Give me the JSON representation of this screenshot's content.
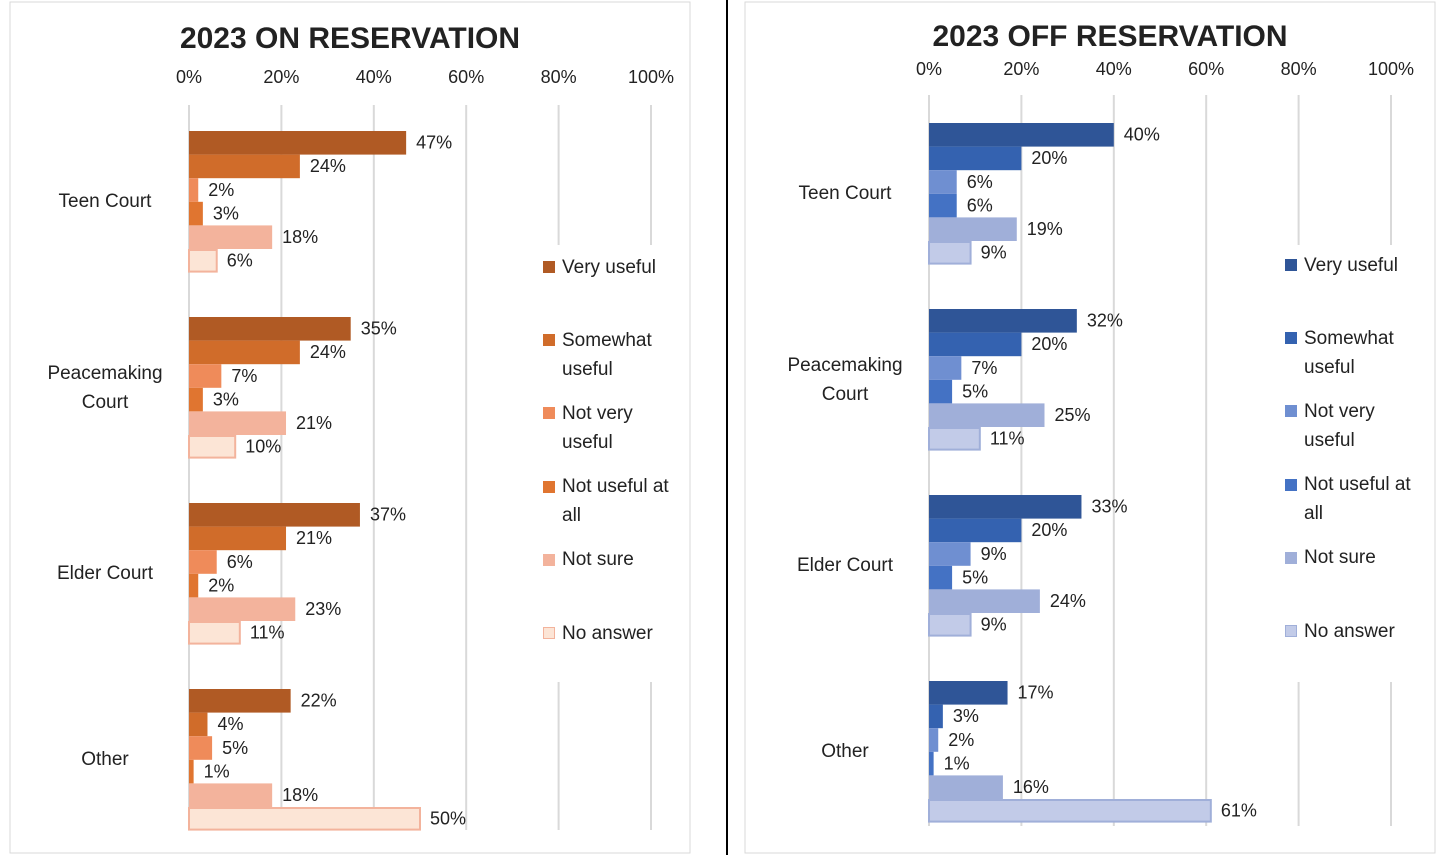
{
  "chart_data": [
    {
      "type": "bar",
      "orientation": "horizontal",
      "title": "2023 ON RESERVATION",
      "title_color": "#8b4513",
      "categories": [
        "Teen Court",
        "Peacemaking Court",
        "Elder Court",
        "Other"
      ],
      "xlim": [
        0,
        100
      ],
      "xticks": [
        {
          "value": 0,
          "label": "0%"
        },
        {
          "value": 20,
          "label": "20%"
        },
        {
          "value": 40,
          "label": "40%"
        },
        {
          "value": 60,
          "label": "60%"
        },
        {
          "value": 80,
          "label": "80%"
        },
        {
          "value": 100,
          "label": "100%"
        }
      ],
      "grid": true,
      "legend": "right",
      "series": [
        {
          "name": "Very useful",
          "color": "#b05a24",
          "values": [
            47,
            35,
            37,
            22
          ],
          "value_labels": [
            "47%",
            "35%",
            "37%",
            "22%"
          ]
        },
        {
          "name": "Somewhat useful",
          "color": "#d06c2a",
          "values": [
            24,
            24,
            21,
            4
          ],
          "value_labels": [
            "24%",
            "24%",
            "21%",
            "4%"
          ]
        },
        {
          "name": "Not very useful",
          "color": "#ef8b5a",
          "values": [
            2,
            7,
            6,
            5
          ],
          "value_labels": [
            "2%",
            "7%",
            "6%",
            "5%"
          ]
        },
        {
          "name": "Not useful at all",
          "color": "#e07530",
          "values": [
            3,
            3,
            2,
            1
          ],
          "value_labels": [
            "3%",
            "3%",
            "2%",
            "1%"
          ]
        },
        {
          "name": "Not sure",
          "color": "#f3b39c",
          "values": [
            18,
            21,
            23,
            18
          ],
          "value_labels": [
            "18%",
            "21%",
            "23%",
            "18%"
          ]
        },
        {
          "name": "No answer",
          "color": "#fce5d6",
          "values": [
            6,
            10,
            11,
            50
          ],
          "value_labels": [
            "6%",
            "10%",
            "11%",
            "50%"
          ]
        }
      ]
    },
    {
      "type": "bar",
      "orientation": "horizontal",
      "title": "2023 OFF RESERVATION",
      "title_color": "#2e4e7a",
      "categories": [
        "Teen Court",
        "Peacemaking Court",
        "Elder Court",
        "Other"
      ],
      "xlim": [
        0,
        100
      ],
      "xticks": [
        {
          "value": 0,
          "label": "0%"
        },
        {
          "value": 20,
          "label": "20%"
        },
        {
          "value": 40,
          "label": "40%"
        },
        {
          "value": 60,
          "label": "60%"
        },
        {
          "value": 80,
          "label": "80%"
        },
        {
          "value": 100,
          "label": "100%"
        }
      ],
      "grid": true,
      "legend": "right",
      "series": [
        {
          "name": "Very useful",
          "color": "#2f5597",
          "values": [
            40,
            32,
            33,
            17
          ],
          "value_labels": [
            "40%",
            "32%",
            "33%",
            "17%"
          ]
        },
        {
          "name": "Somewhat useful",
          "color": "#3462b0",
          "values": [
            20,
            20,
            20,
            3
          ],
          "value_labels": [
            "20%",
            "20%",
            "20%",
            "3%"
          ]
        },
        {
          "name": "Not very useful",
          "color": "#6f8fd1",
          "values": [
            6,
            7,
            9,
            2
          ],
          "value_labels": [
            "6%",
            "7%",
            "9%",
            "2%"
          ]
        },
        {
          "name": "Not useful at all",
          "color": "#4472c4",
          "values": [
            6,
            5,
            5,
            1
          ],
          "value_labels": [
            "6%",
            "5%",
            "5%",
            "1%"
          ]
        },
        {
          "name": "Not sure",
          "color": "#a0afd9",
          "values": [
            19,
            25,
            24,
            16
          ],
          "value_labels": [
            "19%",
            "25%",
            "24%",
            "16%"
          ]
        },
        {
          "name": "No answer",
          "color": "#c2cbe8",
          "values": [
            9,
            11,
            9,
            61
          ],
          "value_labels": [
            "9%",
            "11%",
            "9%",
            "61%"
          ]
        }
      ]
    }
  ]
}
